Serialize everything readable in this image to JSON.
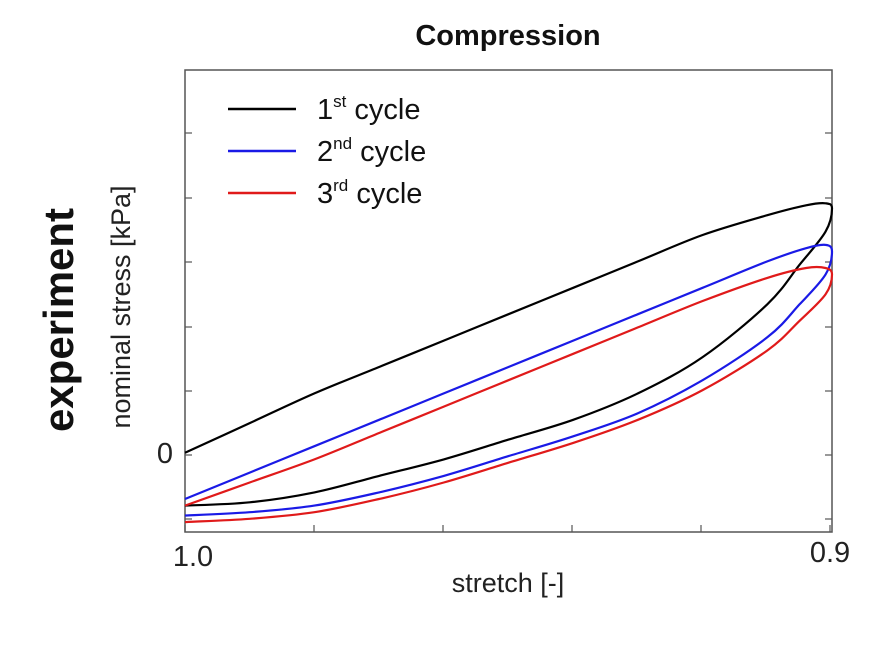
{
  "chart_data": {
    "type": "line",
    "title": "Compression",
    "side_label": "experiment",
    "xlabel": "stretch [-]",
    "ylabel": "nominal stress [kPa]",
    "x_tick_labels": [
      {
        "value": 1.0,
        "label": "1.0"
      },
      {
        "value": 0.9,
        "label": "0.9"
      }
    ],
    "y_tick_labels": [
      {
        "value": 0,
        "label": "0"
      }
    ],
    "xlim": [
      1.0,
      0.9
    ],
    "ylim": [
      -0.12,
      0.58
    ],
    "x_reversed": true,
    "grid": false,
    "legend_position": "top-left",
    "series": [
      {
        "name": "1st cycle",
        "legend_base": "1",
        "legend_sup": "st",
        "legend_rest": " cycle",
        "color": "#000000",
        "x": [
          1.0,
          0.99,
          0.98,
          0.97,
          0.96,
          0.95,
          0.94,
          0.93,
          0.92,
          0.91,
          0.904,
          0.901,
          0.9,
          0.901,
          0.905,
          0.91,
          0.92,
          0.93,
          0.94,
          0.95,
          0.96,
          0.97,
          0.98,
          0.99,
          1.0
        ],
        "y": [
          0.0,
          0.045,
          0.09,
          0.13,
          0.17,
          0.21,
          0.25,
          0.29,
          0.33,
          0.36,
          0.375,
          0.378,
          0.37,
          0.335,
          0.285,
          0.225,
          0.145,
          0.09,
          0.05,
          0.02,
          -0.01,
          -0.035,
          -0.06,
          -0.075,
          -0.08
        ]
      },
      {
        "name": "2nd cycle",
        "legend_base": "2",
        "legend_sup": "nd",
        "legend_rest": " cycle",
        "color": "#1a1ae6",
        "x": [
          1.0,
          0.99,
          0.98,
          0.97,
          0.96,
          0.95,
          0.94,
          0.93,
          0.92,
          0.91,
          0.904,
          0.901,
          0.9,
          0.901,
          0.905,
          0.91,
          0.92,
          0.93,
          0.94,
          0.95,
          0.96,
          0.97,
          0.98,
          0.99,
          1.0
        ],
        "y": [
          -0.07,
          -0.03,
          0.01,
          0.05,
          0.09,
          0.13,
          0.17,
          0.21,
          0.25,
          0.29,
          0.31,
          0.315,
          0.305,
          0.27,
          0.225,
          0.175,
          0.11,
          0.06,
          0.025,
          -0.005,
          -0.035,
          -0.06,
          -0.08,
          -0.09,
          -0.095
        ]
      },
      {
        "name": "3rd cycle",
        "legend_base": "3",
        "legend_sup": "rd",
        "legend_rest": " cycle",
        "color": "#e01a1a",
        "x": [
          1.0,
          0.99,
          0.98,
          0.97,
          0.96,
          0.95,
          0.94,
          0.93,
          0.92,
          0.91,
          0.904,
          0.901,
          0.9,
          0.901,
          0.905,
          0.91,
          0.92,
          0.93,
          0.94,
          0.95,
          0.96,
          0.97,
          0.98,
          0.99,
          1.0
        ],
        "y": [
          -0.08,
          -0.045,
          -0.01,
          0.03,
          0.07,
          0.11,
          0.15,
          0.19,
          0.23,
          0.265,
          0.28,
          0.28,
          0.27,
          0.24,
          0.2,
          0.155,
          0.095,
          0.05,
          0.015,
          -0.015,
          -0.045,
          -0.07,
          -0.09,
          -0.1,
          -0.105
        ]
      }
    ]
  }
}
